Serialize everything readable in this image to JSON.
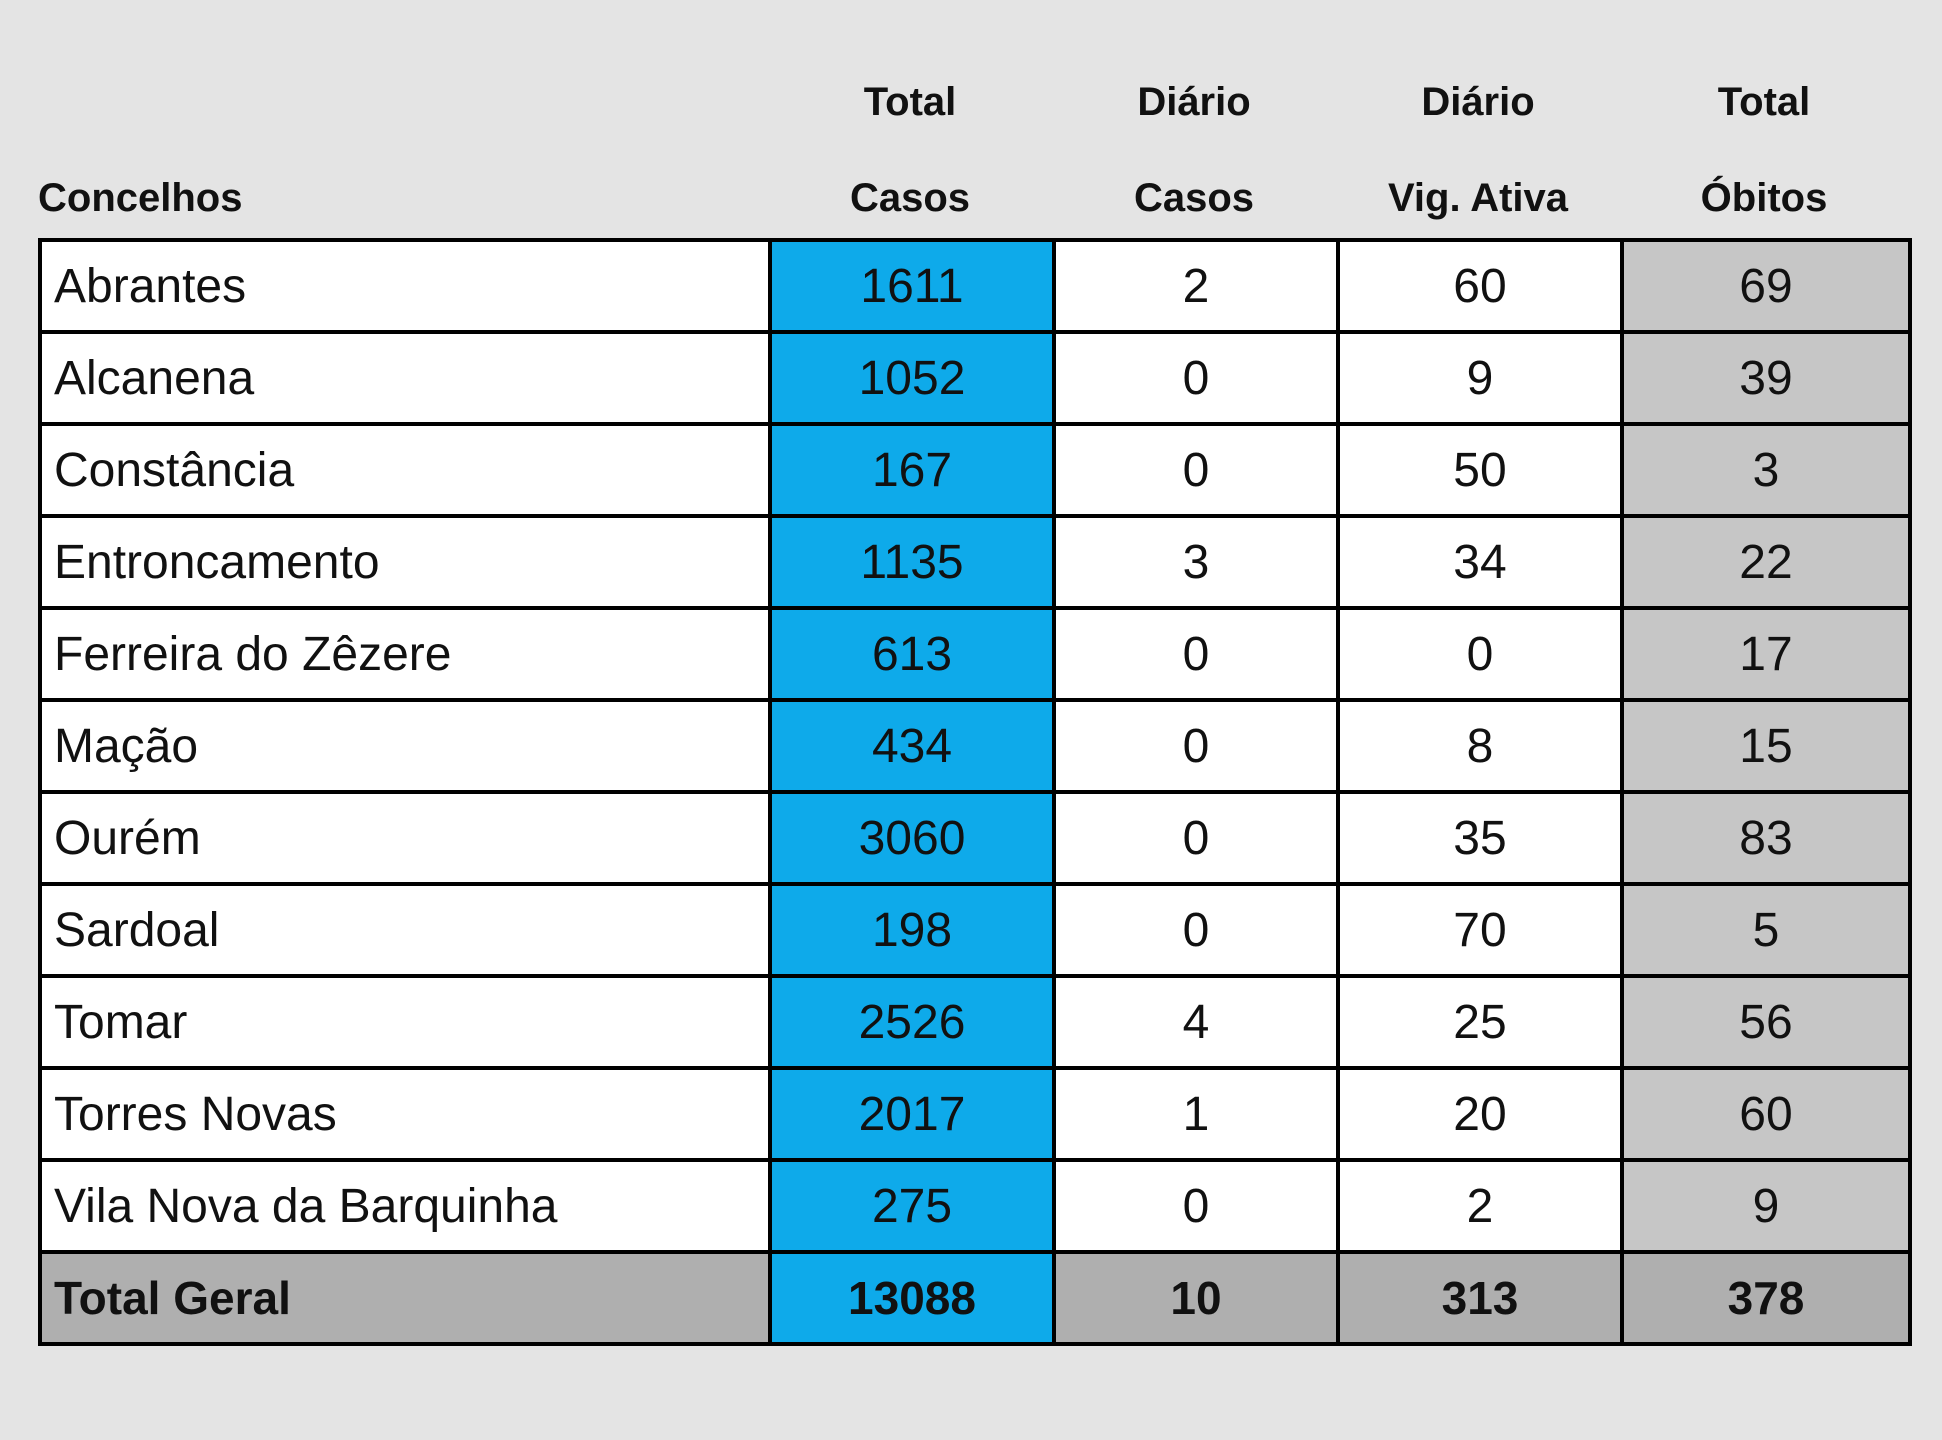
{
  "headers": {
    "concelhos": "Concelhos",
    "total_casos": [
      "Total",
      "Casos"
    ],
    "diario_casos": [
      "Diário",
      "Casos"
    ],
    "diario_vig": [
      "Diário",
      "Vig. Ativa"
    ],
    "total_obitos": [
      "Total",
      "Óbitos"
    ]
  },
  "rows": [
    {
      "name": "Abrantes",
      "total": "1611",
      "daily": "2",
      "vig": "60",
      "obitos": "69"
    },
    {
      "name": "Alcanena",
      "total": "1052",
      "daily": "0",
      "vig": "9",
      "obitos": "39"
    },
    {
      "name": "Constância",
      "total": "167",
      "daily": "0",
      "vig": "50",
      "obitos": "3"
    },
    {
      "name": "Entroncamento",
      "total": "1135",
      "daily": "3",
      "vig": "34",
      "obitos": "22"
    },
    {
      "name": "Ferreira do Zêzere",
      "total": "613",
      "daily": "0",
      "vig": "0",
      "obitos": "17"
    },
    {
      "name": "Mação",
      "total": "434",
      "daily": "0",
      "vig": "8",
      "obitos": "15"
    },
    {
      "name": "Ourém",
      "total": "3060",
      "daily": "0",
      "vig": "35",
      "obitos": "83"
    },
    {
      "name": "Sardoal",
      "total": "198",
      "daily": "0",
      "vig": "70",
      "obitos": "5"
    },
    {
      "name": "Tomar",
      "total": "2526",
      "daily": "4",
      "vig": "25",
      "obitos": "56"
    },
    {
      "name": "Torres Novas",
      "total": "2017",
      "daily": "1",
      "vig": "20",
      "obitos": "60"
    },
    {
      "name": "Vila Nova da Barquinha",
      "total": "275",
      "daily": "0",
      "vig": "2",
      "obitos": "9"
    }
  ],
  "total_row": {
    "name": "Total Geral",
    "total": "13088",
    "daily": "10",
    "vig": "313",
    "obitos": "378"
  },
  "colors": {
    "background": "#e4e4e4",
    "total_column": "#0eaaea",
    "obitos_column": "#c6c6c6",
    "total_row": "#afafaf"
  }
}
